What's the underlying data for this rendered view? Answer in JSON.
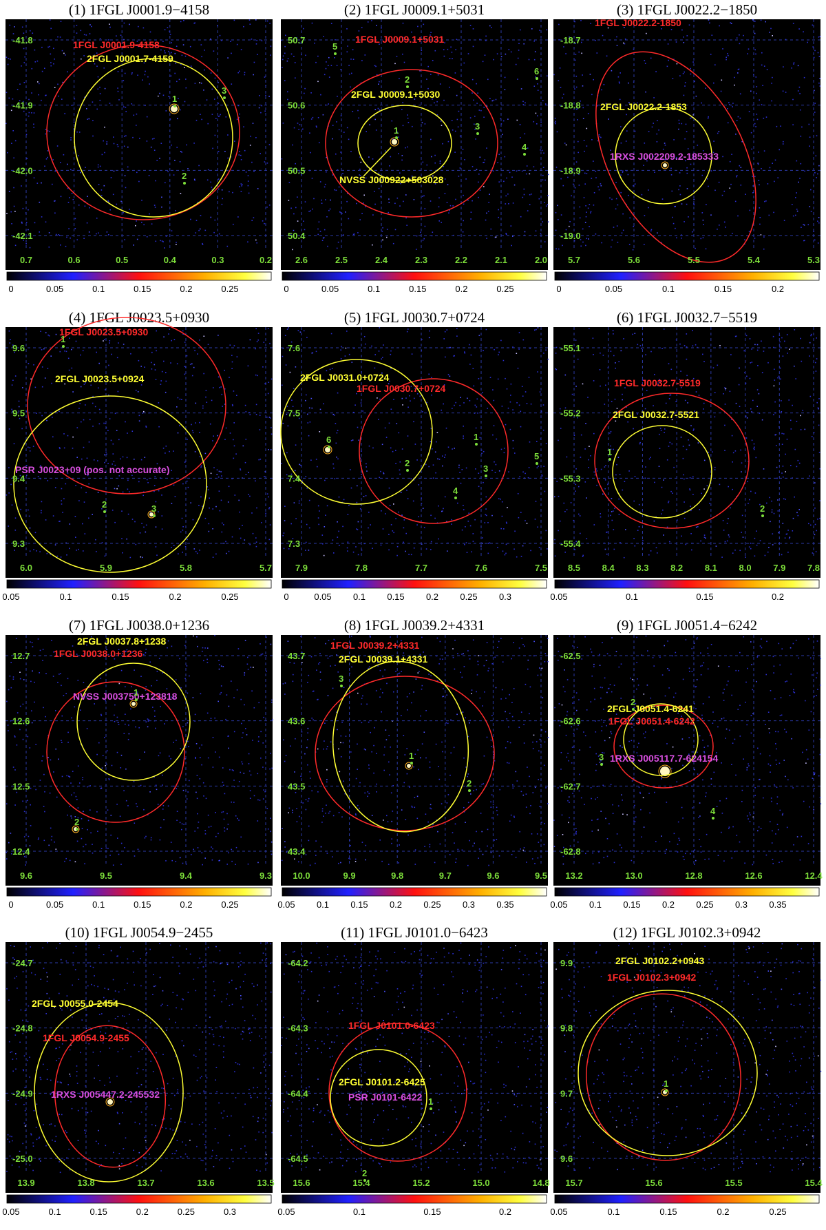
{
  "colors": {
    "fgl1": "#ff2a2a",
    "fgl2": "#ffff33",
    "counterpart": "#d94fe0",
    "numbers": "#7dde3a",
    "grid": "#2b3aa8",
    "background": "#000000",
    "frame_bg": "#ffffff"
  },
  "panels": [
    {
      "title": "(1) 1FGL J0001.9−4158",
      "ra_ticks": [
        "0.7",
        "0.6",
        "0.5",
        "0.4",
        "0.3",
        "0.2"
      ],
      "dec_ticks": [
        "-41.8",
        "-41.9",
        "-42.0",
        "-42.1"
      ],
      "colorbar_ticks": [
        "0",
        "0.05",
        "0.1",
        "0.15",
        "0.2",
        "0.25"
      ],
      "labels": [
        {
          "text": "1FGL J0001.9-4158",
          "kind": "fgl1"
        },
        {
          "text": "2FGL J0001.7-4159",
          "kind": "fgl2"
        }
      ],
      "numbers": [
        "1",
        "2",
        "3"
      ]
    },
    {
      "title": "(2) 1FGL J0009.1+5031",
      "ra_ticks": [
        "2.6",
        "2.5",
        "2.4",
        "2.3",
        "2.2",
        "2.1",
        "2.0"
      ],
      "dec_ticks": [
        "50.7",
        "50.6",
        "50.5",
        "50.4"
      ],
      "colorbar_ticks": [
        "0",
        "0.05",
        "0.1",
        "0.15",
        "0.2",
        "0.25"
      ],
      "labels": [
        {
          "text": "1FGL J0009.1+5031",
          "kind": "fgl1"
        },
        {
          "text": "2FGL J0009.1+5030",
          "kind": "fgl2"
        },
        {
          "text": "NVSS J000922+503028",
          "kind": "fgl2"
        }
      ],
      "numbers": [
        "1",
        "2",
        "3",
        "4",
        "5",
        "6"
      ]
    },
    {
      "title": "(3) 1FGL J0022.2−1850",
      "ra_ticks": [
        "5.7",
        "5.6",
        "5.5",
        "5.4",
        "5.3"
      ],
      "dec_ticks": [
        "-18.7",
        "-18.8",
        "-18.9",
        "-19.0"
      ],
      "colorbar_ticks": [
        "0",
        "0.05",
        "0.1",
        "0.15",
        "0.2"
      ],
      "labels": [
        {
          "text": "1FGL J0022.2-1850",
          "kind": "fgl1"
        },
        {
          "text": "2FGL J0022.2-1853",
          "kind": "fgl2"
        },
        {
          "text": "1RXS J002209.2-185333",
          "kind": "counterpart"
        }
      ],
      "numbers": []
    },
    {
      "title": "(4) 1FGL J0023.5+0930",
      "ra_ticks": [
        "6.0",
        "5.9",
        "5.8",
        "5.7"
      ],
      "dec_ticks": [
        "9.6",
        "9.5",
        "9.4",
        "9.3"
      ],
      "colorbar_ticks": [
        "0.05",
        "0.1",
        "0.15",
        "0.2",
        "0.25"
      ],
      "labels": [
        {
          "text": "1FGL J0023.5+0930",
          "kind": "fgl1"
        },
        {
          "text": "2FGL J0023.5+0924",
          "kind": "fgl2"
        },
        {
          "text": "PSR J0023+09 (pos. not accurate)",
          "kind": "counterpart"
        }
      ],
      "numbers": [
        "1",
        "2",
        "3"
      ]
    },
    {
      "title": "(5) 1FGL J0030.7+0724",
      "ra_ticks": [
        "7.9",
        "7.8",
        "7.7",
        "7.6",
        "7.5"
      ],
      "dec_ticks": [
        "7.6",
        "7.5",
        "7.4",
        "7.3"
      ],
      "colorbar_ticks": [
        "0",
        "0.05",
        "0.1",
        "0.15",
        "0.2",
        "0.25",
        "0.3"
      ],
      "labels": [
        {
          "text": "2FGL J0031.0+0724",
          "kind": "fgl2"
        },
        {
          "text": "1FGL J0030.7+0724",
          "kind": "fgl1"
        }
      ],
      "numbers": [
        "1",
        "2",
        "3",
        "4",
        "5",
        "6"
      ]
    },
    {
      "title": "(6) 1FGL J0032.7−5519",
      "ra_ticks": [
        "8.5",
        "8.4",
        "8.3",
        "8.2",
        "8.1",
        "8.0",
        "7.9",
        "7.8"
      ],
      "dec_ticks": [
        "-55.1",
        "-55.2",
        "-55.3",
        "-55.4"
      ],
      "colorbar_ticks": [
        "0.05",
        "0.1",
        "0.15",
        "0.2"
      ],
      "labels": [
        {
          "text": "1FGL J0032.7-5519",
          "kind": "fgl1"
        },
        {
          "text": "2FGL J0032.7-5521",
          "kind": "fgl2"
        }
      ],
      "numbers": [
        "1",
        "2"
      ]
    },
    {
      "title": "(7) 1FGL J0038.0+1236",
      "ra_ticks": [
        "9.6",
        "9.5",
        "9.4",
        "9.3"
      ],
      "dec_ticks": [
        "12.7",
        "12.6",
        "12.5",
        "12.4"
      ],
      "colorbar_ticks": [
        "0",
        "0.05",
        "0.1",
        "0.15",
        "0.2",
        "0.25"
      ],
      "labels": [
        {
          "text": "2FGL J0037.8+1238",
          "kind": "fgl2"
        },
        {
          "text": "1FGL J0038.0+1236",
          "kind": "fgl1"
        },
        {
          "text": "NVSS J003750+123818",
          "kind": "counterpart"
        }
      ],
      "numbers": [
        "1",
        "2"
      ]
    },
    {
      "title": "(8) 1FGL J0039.2+4331",
      "ra_ticks": [
        "10.0",
        "9.9",
        "9.8",
        "9.7",
        "9.6",
        "9.5"
      ],
      "dec_ticks": [
        "43.7",
        "43.6",
        "43.5",
        "43.4"
      ],
      "colorbar_ticks": [
        "0.05",
        "0.1",
        "0.15",
        "0.2",
        "0.25",
        "0.3",
        "0.35"
      ],
      "labels": [
        {
          "text": "1FGL J0039.2+4331",
          "kind": "fgl1"
        },
        {
          "text": "2FGL J0039.1+4331",
          "kind": "fgl2"
        }
      ],
      "numbers": [
        "1",
        "2",
        "3"
      ]
    },
    {
      "title": "(9) 1FGL J0051.4−6242",
      "ra_ticks": [
        "13.2",
        "13.0",
        "12.8",
        "12.6",
        "12.4"
      ],
      "dec_ticks": [
        "-62.5",
        "-62.6",
        "-62.7",
        "-62.8"
      ],
      "colorbar_ticks": [
        "0.05",
        "0.1",
        "0.15",
        "0.2",
        "0.25",
        "0.3",
        "0.35"
      ],
      "labels": [
        {
          "text": "2FGL J0051.4-6241",
          "kind": "fgl2"
        },
        {
          "text": "1FGL J0051.4-6242",
          "kind": "fgl1"
        },
        {
          "text": "1RXS J005117.7-624154",
          "kind": "counterpart"
        }
      ],
      "numbers": [
        "2",
        "3",
        "4"
      ]
    },
    {
      "title": "(10) 1FGL J0054.9−2455",
      "ra_ticks": [
        "13.9",
        "13.8",
        "13.7",
        "13.6",
        "13.5"
      ],
      "dec_ticks": [
        "-24.7",
        "-24.8",
        "-24.9",
        "-25.0"
      ],
      "colorbar_ticks": [
        "0.05",
        "0.1",
        "0.15",
        "0.2",
        "0.25",
        "0.3"
      ],
      "labels": [
        {
          "text": "2FGL J0055.0-2454",
          "kind": "fgl2"
        },
        {
          "text": "1FGL J0054.9-2455",
          "kind": "fgl1"
        },
        {
          "text": "1RXS J005447.2-245532",
          "kind": "counterpart"
        }
      ],
      "numbers": []
    },
    {
      "title": "(11) 1FGL J0101.0−6423",
      "ra_ticks": [
        "15.6",
        "15.4",
        "15.2",
        "15.0",
        "14.8"
      ],
      "dec_ticks": [
        "-64.2",
        "-64.3",
        "-64.4",
        "-64.5"
      ],
      "colorbar_ticks": [
        "0.05",
        "0.1",
        "0.15",
        "0.2"
      ],
      "labels": [
        {
          "text": "1FGL J0101.0-6423",
          "kind": "fgl1"
        },
        {
          "text": "2FGL J0101.2-6425",
          "kind": "fgl2"
        },
        {
          "text": "PSR J0101-6422",
          "kind": "counterpart"
        }
      ],
      "numbers": [
        "1",
        "2"
      ]
    },
    {
      "title": "(12) 1FGL J0102.3+0942",
      "ra_ticks": [
        "15.7",
        "15.6",
        "15.5",
        "15.4"
      ],
      "dec_ticks": [
        "9.9",
        "9.8",
        "9.7",
        "9.6"
      ],
      "colorbar_ticks": [
        "0.05",
        "0.1",
        "0.15",
        "0.2",
        "0.25"
      ],
      "labels": [
        {
          "text": "2FGL J0102.2+0943",
          "kind": "fgl2"
        },
        {
          "text": "1FGL J0102.3+0942",
          "kind": "fgl1"
        }
      ],
      "numbers": [
        "1"
      ]
    }
  ]
}
